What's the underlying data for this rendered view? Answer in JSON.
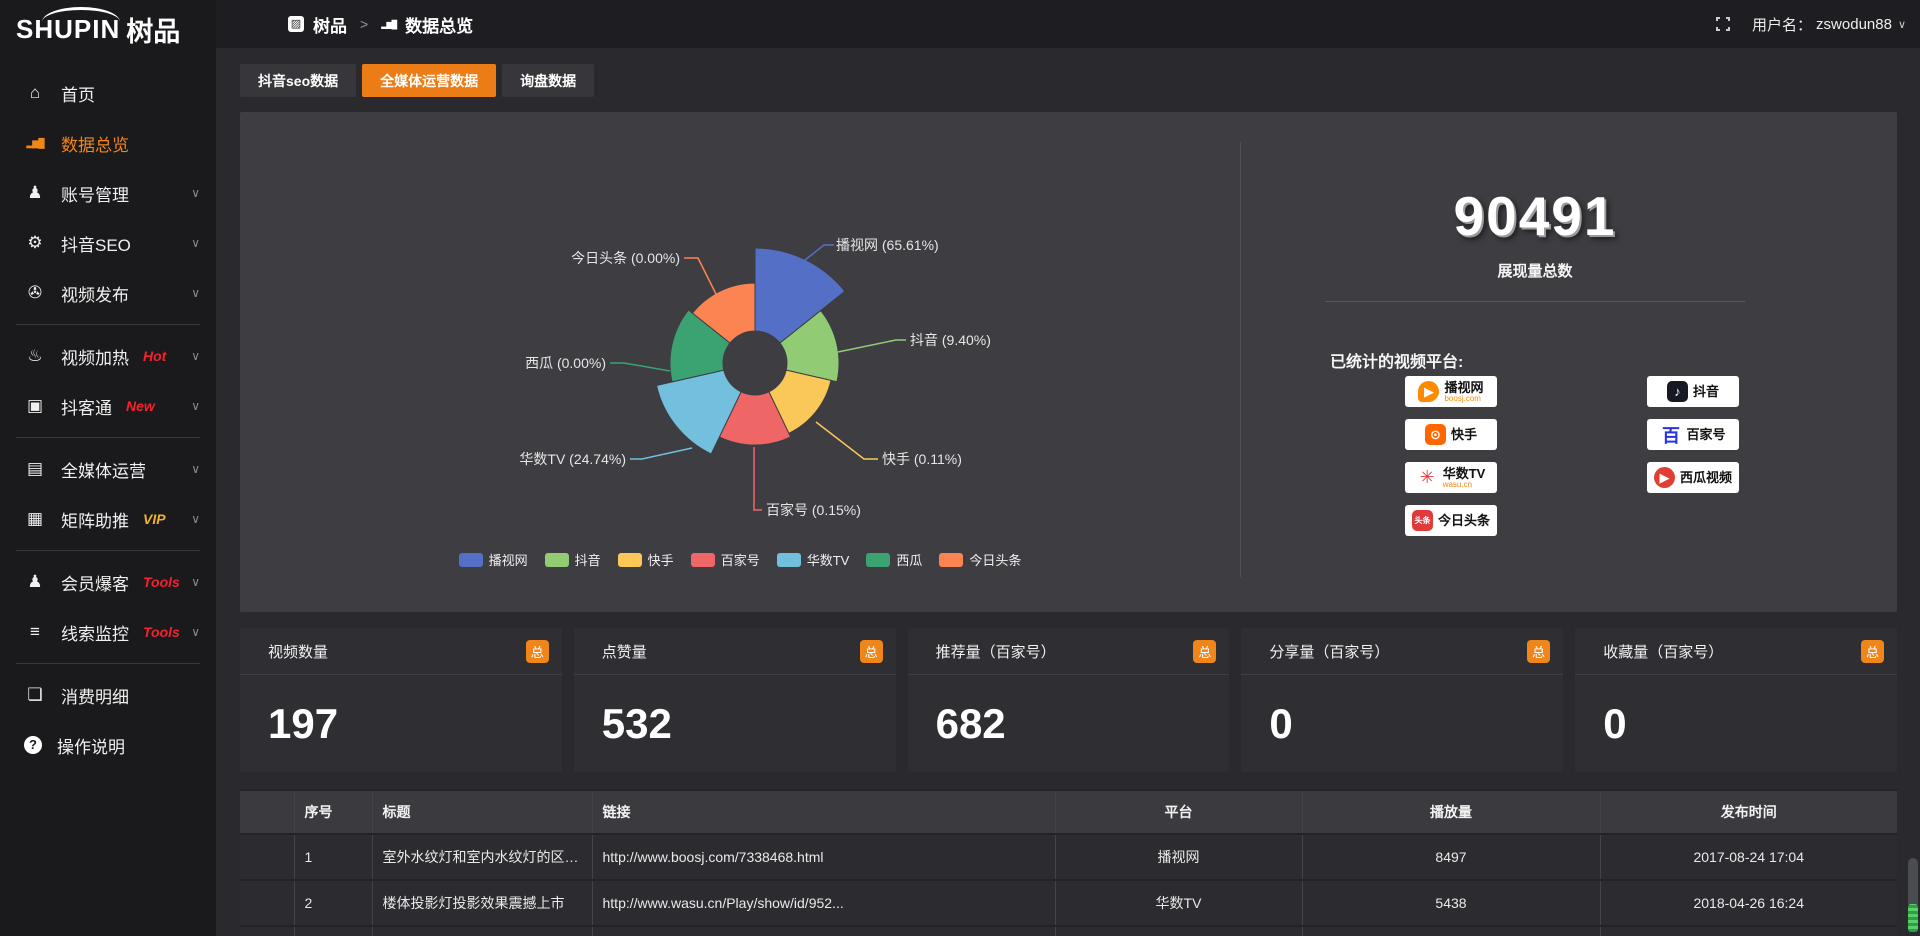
{
  "brand": {
    "logo_en": "SHUPIN",
    "logo_cn": "树品"
  },
  "topbar": {
    "breadcrumb_root": "树品",
    "breadcrumb_sep": ">",
    "breadcrumb_current": "数据总览",
    "username_label": "用户名：",
    "username": "zswodun88"
  },
  "sidebar": {
    "items": [
      {
        "label": "首页",
        "icon": "⌂",
        "icon_name": "home-icon"
      },
      {
        "label": "数据总览",
        "icon": "▂▆█",
        "icon_bars": true,
        "icon_name": "bar-chart-icon",
        "active": true
      },
      {
        "label": "账号管理",
        "icon": "♟",
        "icon_name": "user-icon",
        "chevron": true
      },
      {
        "label": "抖音SEO",
        "icon": "⚙",
        "icon_name": "gear-icon",
        "chevron": true
      },
      {
        "label": "视频发布",
        "icon": "✇",
        "icon_name": "video-camera-icon",
        "chevron": true
      },
      {
        "divider": true
      },
      {
        "label": "视频加热",
        "icon": "♨",
        "icon_name": "heat-icon",
        "badge": "Hot",
        "badge_color": "#f5222d",
        "chevron": true
      },
      {
        "label": "抖客通",
        "icon": "▣",
        "icon_name": "chat-icon",
        "badge": "New",
        "badge_color": "#f5222d",
        "chevron": true
      },
      {
        "divider": true
      },
      {
        "label": "全媒体运营",
        "icon": "▤",
        "icon_name": "monitor-icon",
        "chevron": true
      },
      {
        "label": "矩阵助推",
        "icon": "▦",
        "icon_name": "grid-icon",
        "badge": "VIP",
        "badge_color": "#f0b429",
        "chevron": true
      },
      {
        "divider": true
      },
      {
        "label": "会员爆客",
        "icon": "♟",
        "icon_name": "member-icon",
        "badge": "Tools",
        "badge_color": "#f5222d",
        "chevron": true
      },
      {
        "label": "线索监控",
        "icon": "≡",
        "icon_name": "sliders-icon",
        "badge": "Tools",
        "badge_color": "#f5222d",
        "chevron": true
      },
      {
        "divider": true
      },
      {
        "label": "消费明细",
        "icon": "❏",
        "icon_name": "expense-icon"
      },
      {
        "label": "操作说明",
        "icon": "?",
        "icon_circle": true,
        "icon_name": "help-icon"
      }
    ]
  },
  "tabs": [
    {
      "label": "抖音seo数据",
      "active": false
    },
    {
      "label": "全媒体运营数据",
      "active": true
    },
    {
      "label": "询盘数据",
      "active": false
    }
  ],
  "chart_data": {
    "type": "pie",
    "variant": "nightingale-rose-donut",
    "unit": "percent",
    "legend_position": "bottom",
    "series": [
      {
        "name": "播视网",
        "value": 65.61,
        "color": "#5470c6"
      },
      {
        "name": "抖音",
        "value": 9.4,
        "color": "#91cc75"
      },
      {
        "name": "快手",
        "value": 0.11,
        "color": "#fac858"
      },
      {
        "name": "百家号",
        "value": 0.15,
        "color": "#ee6666"
      },
      {
        "name": "华数TV",
        "value": 24.74,
        "color": "#73c0de"
      },
      {
        "name": "西瓜",
        "value": 0.0,
        "color": "#3ba272"
      },
      {
        "name": "今日头条",
        "value": 0.0,
        "color": "#fc8452"
      }
    ]
  },
  "summary": {
    "total_value": "90491",
    "total_label": "展现量总数",
    "platforms_label": "已统计的视频平台:",
    "platform_badges": [
      {
        "name": "播视网",
        "sub": "boosj.com",
        "sub_color": "#ff8a00",
        "icon_text": "▶",
        "icon_bg": "#ff8a00",
        "shape": "drop"
      },
      {
        "name": "快手",
        "icon_text": "⊙",
        "icon_bg": "#ff6600",
        "shape": "square"
      },
      {
        "name": "华数TV",
        "sub": "wasu.cn",
        "sub_color": "#f08519",
        "icon_text": "✳",
        "icon_color": "#e4393c",
        "shape": "plain"
      },
      {
        "name": "今日头条",
        "icon_text": "头条",
        "icon_bg": "#e03a3a",
        "shape": "square",
        "small": true
      },
      {
        "name": "抖音",
        "icon_text": "♪",
        "icon_bg": "#161823",
        "shape": "square"
      },
      {
        "name": "百家号",
        "icon_text": "百",
        "icon_color": "#2932e1",
        "shape": "plain"
      },
      {
        "name": "西瓜视频",
        "icon_text": "▶",
        "icon_bg": "#e23d33",
        "shape": "circle"
      }
    ]
  },
  "stat_cards": [
    {
      "title": "视频数量",
      "badge": "总",
      "value": "197"
    },
    {
      "title": "点赞量",
      "badge": "总",
      "value": "532"
    },
    {
      "title": "推荐量（百家号）",
      "badge": "总",
      "value": "682"
    },
    {
      "title": "分享量（百家号）",
      "badge": "总",
      "value": "0"
    },
    {
      "title": "收藏量（百家号）",
      "badge": "总",
      "value": "0"
    }
  ],
  "table": {
    "headers": {
      "no": "序号",
      "title": "标题",
      "link": "链接",
      "platform": "平台",
      "plays": "播放量",
      "time": "发布时间"
    },
    "rows": [
      {
        "no": "1",
        "title": "室外水纹灯和室内水纹灯的区别和简介",
        "link": "http://www.boosj.com/7338468.html",
        "platform": "播视网",
        "plays": "8497",
        "time": "2017-08-24 17:04"
      },
      {
        "no": "2",
        "title": "楼体投影灯投影效果震撼上市",
        "link": "http://www.wasu.cn/Play/show/id/952...",
        "platform": "华数TV",
        "plays": "5438",
        "time": "2018-04-26 16:24"
      },
      {
        "no": "",
        "title": "",
        "link": "",
        "platform": "",
        "plays": "",
        "time": ""
      }
    ]
  }
}
